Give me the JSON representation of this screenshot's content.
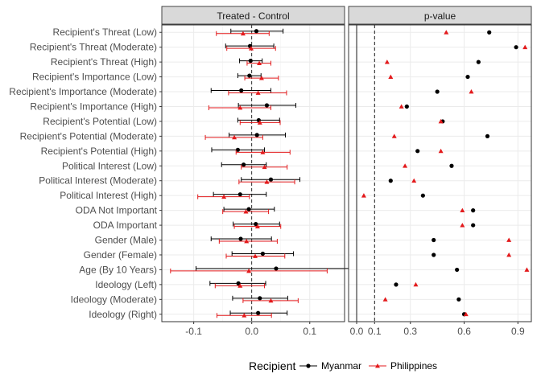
{
  "chart_data": {
    "type": "scatter",
    "subtype": "dot-and-whisker with faceted p-value panel",
    "panels": [
      "Treated - Control",
      "p-value"
    ],
    "categories": [
      "Recipient's Threat (Low)",
      "Recipient's Threat (Moderate)",
      "Recipient's Threat (High)",
      "Recipient's Importance (Low)",
      "Recipient's Importance (Moderate)",
      "Recipient's Importance (High)",
      "Recipient's Potential (Low)",
      "Recipient's Potential (Moderate)",
      "Recipient's Potential (High)",
      "Political Interest (Low)",
      "Political Interest (Moderate)",
      "Political Interest (High)",
      "ODA Not Important",
      "ODA Important",
      "Gender (Male)",
      "Gender (Female)",
      "Age (By 10 Years)",
      "Ideology (Left)",
      "Ideology (Moderate)",
      "Ideology (Right)"
    ],
    "left_panel": {
      "xlim": [
        -0.155,
        0.16
      ],
      "xticks": [
        -0.1,
        0,
        0.1
      ],
      "xtick_labels": [
        "-0.1",
        "0.0",
        "0.1"
      ],
      "reference_line": 0
    },
    "right_panel": {
      "xlim": [
        -0.045,
        0.975
      ],
      "xticks": [
        0,
        0.1,
        0.3,
        0.6,
        0.9
      ],
      "xtick_labels": [
        "0.0",
        "0.1",
        "0.3",
        "0.6",
        "0.9"
      ],
      "solid_line": 0,
      "dashed_line": 0.1
    },
    "series": [
      {
        "name": "Myanmar",
        "color": "#000000",
        "marker": "circle",
        "estimate": [
          0.008,
          -0.003,
          -0.002,
          -0.004,
          -0.018,
          0.026,
          0.012,
          0.009,
          -0.024,
          -0.014,
          0.033,
          -0.02,
          -0.005,
          0.007,
          -0.019,
          0.019,
          0.042,
          -0.023,
          0.014,
          0.011
        ],
        "lower": [
          -0.036,
          -0.045,
          -0.021,
          -0.024,
          -0.07,
          -0.023,
          -0.024,
          -0.039,
          -0.069,
          -0.052,
          -0.018,
          -0.066,
          -0.048,
          -0.032,
          -0.07,
          -0.034,
          -0.096,
          -0.072,
          -0.033,
          -0.037
        ],
        "upper": [
          0.054,
          0.038,
          0.018,
          0.016,
          0.033,
          0.076,
          0.048,
          0.058,
          0.022,
          0.025,
          0.083,
          0.025,
          0.039,
          0.048,
          0.034,
          0.072,
          0.18,
          0.024,
          0.062,
          0.061
        ],
        "p_value": [
          0.74,
          0.89,
          0.68,
          0.62,
          0.45,
          0.28,
          0.48,
          0.73,
          0.34,
          0.53,
          0.19,
          0.37,
          0.65,
          0.65,
          0.43,
          0.43,
          0.56,
          0.22,
          0.57,
          0.6
        ]
      },
      {
        "name": "Philippines",
        "color": "#e31a1c",
        "marker": "triangle",
        "estimate": [
          -0.015,
          -0.001,
          0.013,
          0.017,
          0.011,
          -0.02,
          0.014,
          -0.03,
          0.019,
          0.022,
          0.026,
          -0.048,
          -0.01,
          0.01,
          -0.009,
          0.006,
          -0.005,
          -0.02,
          0.033,
          -0.013
        ],
        "lower": [
          -0.061,
          -0.043,
          -0.008,
          -0.012,
          -0.04,
          -0.074,
          -0.02,
          -0.08,
          -0.027,
          -0.018,
          -0.022,
          -0.093,
          -0.05,
          -0.03,
          -0.056,
          -0.044,
          -0.14,
          -0.063,
          -0.015,
          -0.06
        ],
        "upper": [
          0.03,
          0.041,
          0.033,
          0.046,
          0.06,
          0.033,
          0.049,
          0.019,
          0.066,
          0.061,
          0.074,
          -0.004,
          0.029,
          0.05,
          0.044,
          0.057,
          0.13,
          0.022,
          0.08,
          0.034
        ],
        "p_value": [
          0.5,
          0.94,
          0.17,
          0.19,
          0.64,
          0.25,
          0.47,
          0.21,
          0.47,
          0.27,
          0.32,
          0.04,
          0.59,
          0.59,
          0.85,
          0.85,
          0.95,
          0.33,
          0.16,
          0.61
        ]
      }
    ],
    "legend": {
      "title": "Recipient",
      "position": "bottom",
      "entries": [
        "Myanmar",
        "Philippines"
      ]
    },
    "grid": true,
    "xlabel": "",
    "ylabel": ""
  }
}
